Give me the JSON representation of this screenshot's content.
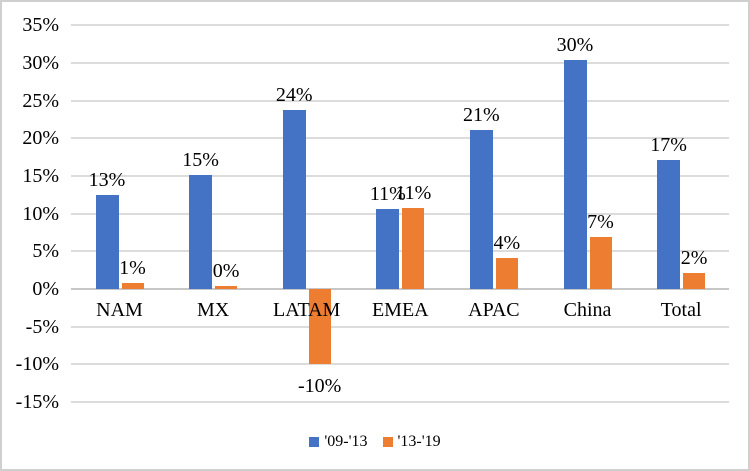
{
  "chart_data": {
    "type": "bar",
    "title": "",
    "categories": [
      "NAM",
      "MX",
      "LATAM",
      "EMEA",
      "APAC",
      "China",
      "Total"
    ],
    "series": [
      {
        "name": "'09-'13",
        "color": "#4472C4",
        "values": [
          12.5,
          15.1,
          23.7,
          10.6,
          21.1,
          30.4,
          17.1
        ],
        "labels": [
          "13%",
          "15%",
          "24%",
          "11%",
          "21%",
          "30%",
          "17%"
        ]
      },
      {
        "name": "'13-'19",
        "color": "#ED7D31",
        "values": [
          0.8,
          0.4,
          -9.9,
          10.8,
          4.1,
          6.9,
          2.1
        ],
        "labels": [
          "1%",
          "0%",
          "-10%",
          "11%",
          "4%",
          "7%",
          "2%"
        ]
      }
    ],
    "y_axis": {
      "min": -15,
      "max": 35,
      "step": 5,
      "format": "percent",
      "tick_labels": [
        "35%",
        "30%",
        "25%",
        "20%",
        "15%",
        "10%",
        "5%",
        "0%",
        "-5%",
        "-10%",
        "-15%"
      ]
    },
    "x_axis": {
      "labels_position": "below-zero-line"
    },
    "grid": true,
    "grid_color": "#dcdcdc",
    "axis_line_color": "#c6c6c6",
    "legend": {
      "position": "bottom"
    },
    "background": "#ffffff"
  }
}
